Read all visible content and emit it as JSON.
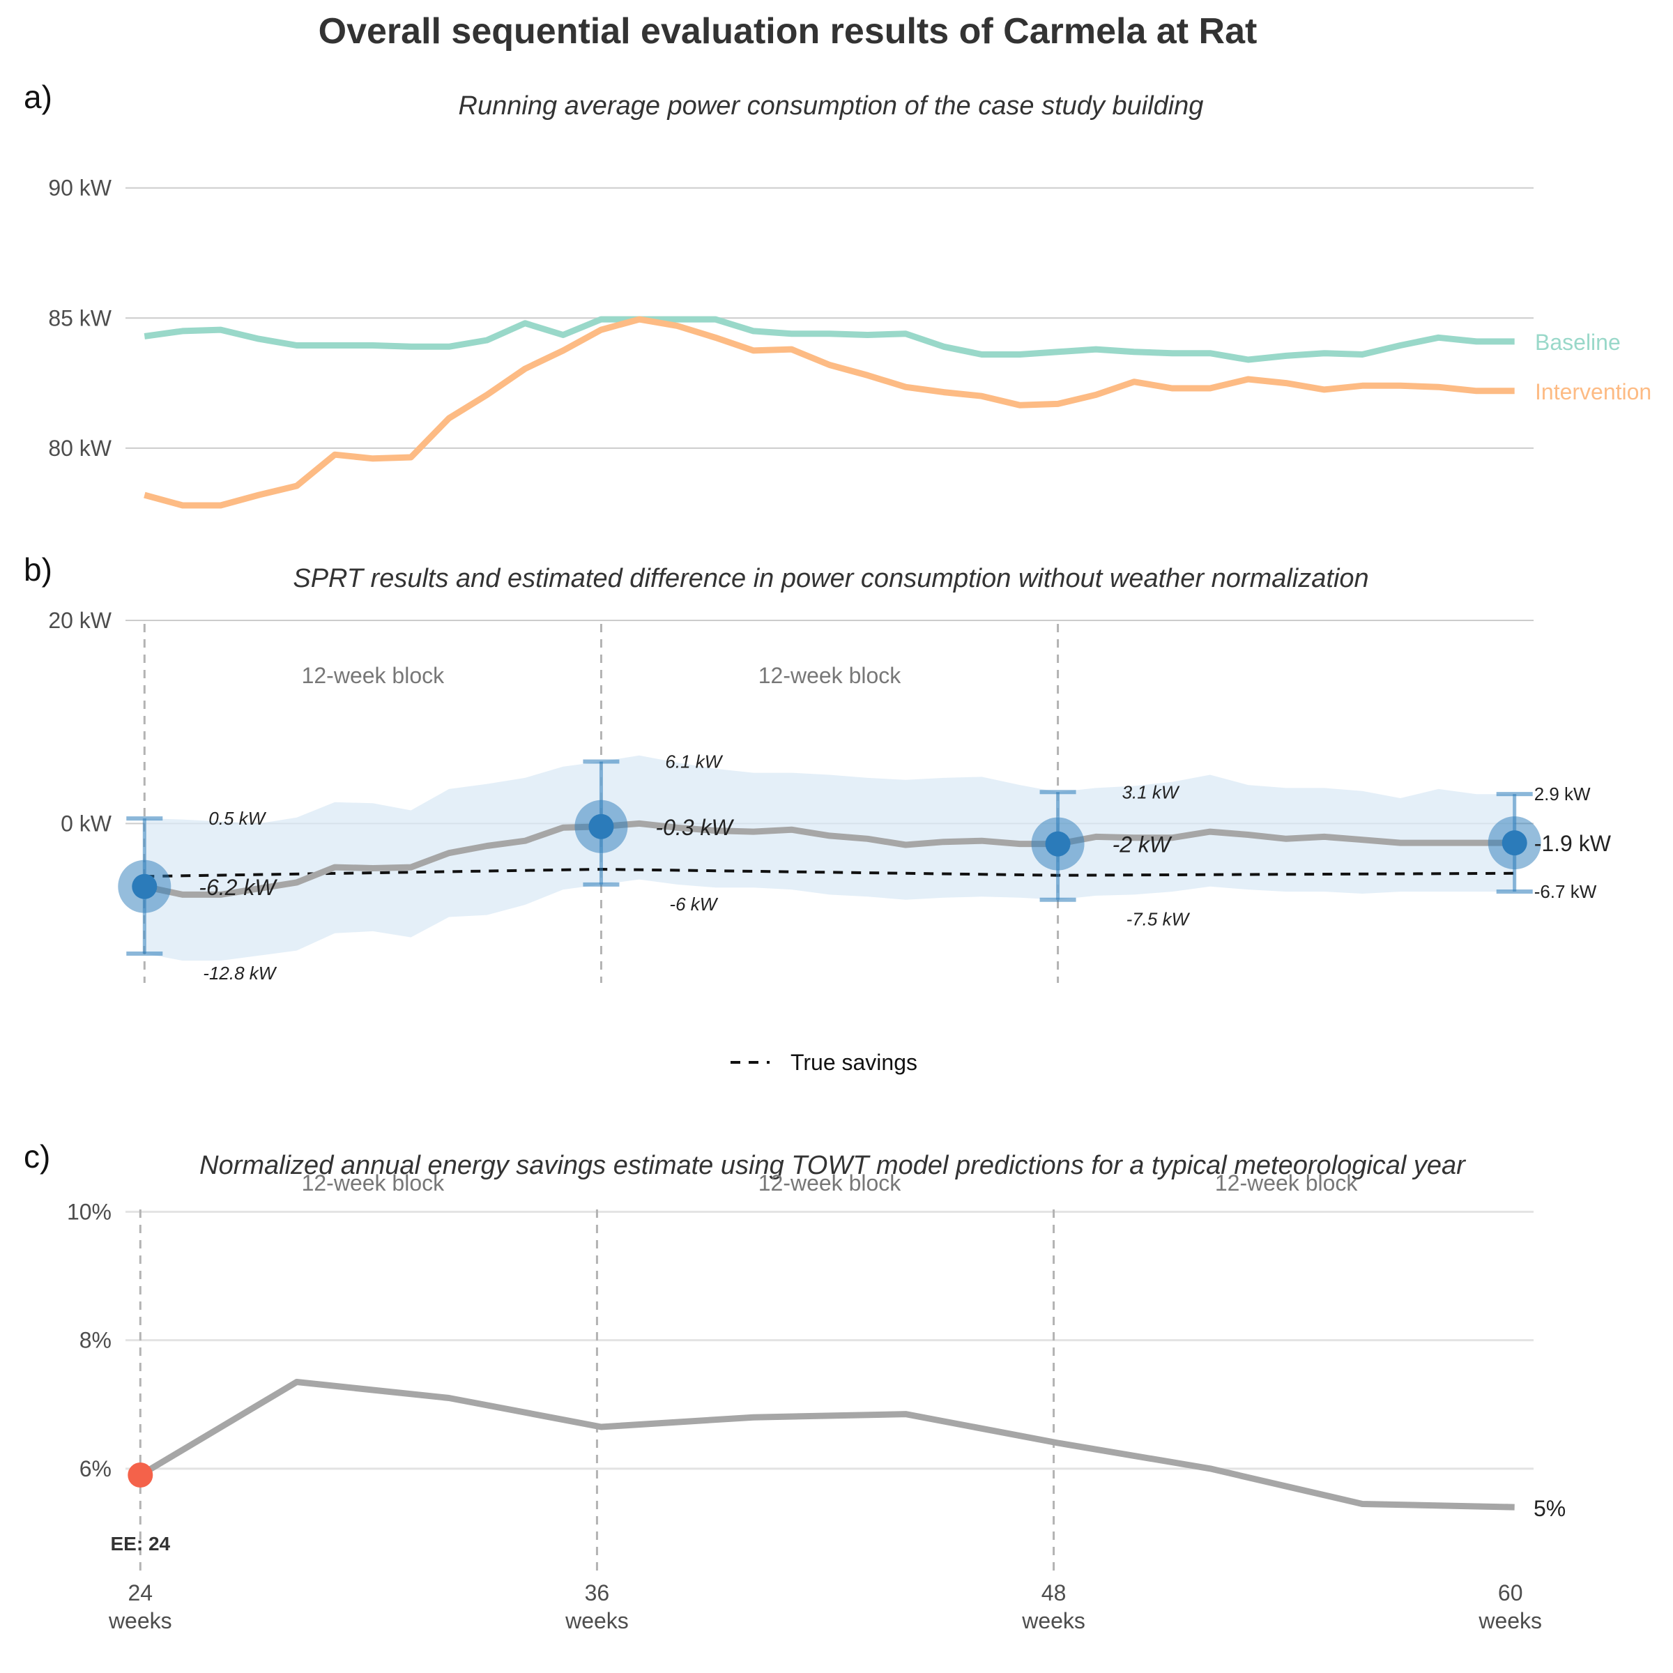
{
  "title": "Overall sequential evaluation results of Carmela at Rat",
  "colors": {
    "baseline": "#99d8c9",
    "intervention": "#fdbb84",
    "estimate_line": "#a6a6a6",
    "ci_band": "#dbe9f5",
    "point": "#2b7bba",
    "ee_point": "#f4624a",
    "true_savings": "#111111"
  },
  "chart_data": [
    {
      "id": "a",
      "panel_label": "a)",
      "type": "line",
      "subtitle": "Running average power consumption of the case study building",
      "ylim": [
        77.8,
        92
      ],
      "yticks": [
        80,
        85,
        90
      ],
      "ytick_labels": [
        "80 kW",
        "85 kW",
        "90 kW"
      ],
      "xlim": [
        23.5,
        60.5
      ],
      "grid": true,
      "series": [
        {
          "name": "Baseline",
          "x": [
            24,
            25,
            26,
            27,
            28,
            29,
            30,
            31,
            32,
            33,
            34,
            35,
            36,
            37,
            38,
            39,
            40,
            41,
            42,
            43,
            44,
            45,
            46,
            47,
            48,
            49,
            50,
            51,
            52,
            53,
            54,
            55,
            56,
            57,
            58,
            59,
            60
          ],
          "values": [
            84.3,
            84.5,
            84.55,
            84.2,
            83.95,
            83.95,
            83.95,
            83.9,
            83.9,
            84.15,
            84.8,
            84.35,
            84.95,
            84.95,
            84.95,
            84.95,
            84.5,
            84.4,
            84.4,
            84.35,
            84.4,
            83.9,
            83.6,
            83.6,
            83.7,
            83.8,
            83.7,
            83.65,
            83.65,
            83.4,
            83.55,
            83.65,
            83.6,
            83.95,
            84.25,
            84.1,
            84.1
          ]
        },
        {
          "name": "Intervention",
          "x": [
            24,
            25,
            26,
            27,
            28,
            29,
            30,
            31,
            32,
            33,
            34,
            35,
            36,
            37,
            38,
            39,
            40,
            41,
            42,
            43,
            44,
            45,
            46,
            47,
            48,
            49,
            50,
            51,
            52,
            53,
            54,
            55,
            56,
            57,
            58,
            59,
            60
          ],
          "values": [
            78.2,
            77.8,
            77.8,
            78.2,
            78.55,
            79.75,
            79.6,
            79.65,
            81.15,
            82.05,
            83.05,
            83.75,
            84.55,
            84.95,
            84.7,
            84.25,
            83.75,
            83.8,
            83.2,
            82.8,
            82.35,
            82.15,
            82.0,
            81.65,
            81.7,
            82.05,
            82.55,
            82.3,
            82.3,
            82.65,
            82.5,
            82.25,
            82.4,
            82.4,
            82.35,
            82.2,
            82.2
          ]
        }
      ]
    },
    {
      "id": "b",
      "panel_label": "b)",
      "type": "line",
      "subtitle": "SPRT results and estimated difference in power consumption without weather normalization",
      "ylim": [
        -15,
        20
      ],
      "yticks": [
        0,
        20
      ],
      "ytick_labels": [
        "0 kW",
        "20 kW"
      ],
      "xlim": [
        23.5,
        60.5
      ],
      "grid": true,
      "block_boundaries": [
        24,
        36,
        48
      ],
      "block_labels": [
        {
          "x": 30,
          "label": "12-week block"
        },
        {
          "x": 42,
          "label": "12-week block"
        }
      ],
      "estimate": {
        "x": [
          24,
          25,
          26,
          27,
          28,
          29,
          30,
          31,
          32,
          33,
          34,
          35,
          36,
          37,
          38,
          39,
          40,
          41,
          42,
          43,
          44,
          45,
          46,
          47,
          48,
          49,
          50,
          51,
          52,
          53,
          54,
          55,
          56,
          57,
          58,
          59,
          60
        ],
        "values": [
          -6.2,
          -7.0,
          -7.0,
          -6.4,
          -5.8,
          -4.3,
          -4.4,
          -4.3,
          -2.9,
          -2.2,
          -1.7,
          -0.4,
          -0.3,
          0.0,
          -0.4,
          -0.7,
          -0.8,
          -0.6,
          -1.2,
          -1.5,
          -2.1,
          -1.8,
          -1.7,
          -2.0,
          -2.0,
          -1.3,
          -1.4,
          -1.4,
          -0.8,
          -1.1,
          -1.5,
          -1.3,
          -1.6,
          -1.9,
          -1.9,
          -1.9,
          -1.9
        ]
      },
      "ci_band": {
        "lower": [
          -12.8,
          -13.5,
          -13.5,
          -13.0,
          -12.5,
          -10.8,
          -10.6,
          -11.2,
          -9.2,
          -9.0,
          -8.0,
          -6.5,
          -6.0,
          -5.5,
          -6.0,
          -6.3,
          -6.3,
          -6.5,
          -7.0,
          -7.2,
          -7.5,
          -7.3,
          -7.2,
          -7.3,
          -7.5,
          -7.1,
          -7.0,
          -6.7,
          -6.2,
          -6.5,
          -6.7,
          -6.7,
          -6.9,
          -6.7,
          -6.7,
          -6.7,
          -6.7
        ],
        "upper": [
          0.5,
          0.4,
          0.2,
          0.0,
          0.6,
          2.1,
          2.0,
          1.3,
          3.4,
          3.9,
          4.5,
          5.6,
          6.1,
          6.7,
          6.0,
          5.4,
          5.0,
          5.0,
          4.8,
          4.5,
          4.3,
          4.5,
          4.6,
          3.8,
          3.1,
          3.5,
          3.7,
          4.1,
          4.8,
          3.8,
          3.5,
          3.5,
          3.2,
          2.5,
          3.4,
          2.9,
          2.9
        ]
      },
      "evaluations": [
        {
          "x": 24,
          "estimate": -6.2,
          "lower": -12.8,
          "upper": 0.5,
          "estimate_label": "-6.2 kW",
          "lower_label": "-12.8 kW",
          "upper_label": "0.5 kW"
        },
        {
          "x": 36,
          "estimate": -0.3,
          "lower": -6.0,
          "upper": 6.1,
          "estimate_label": "-0.3 kW",
          "lower_label": "-6 kW",
          "upper_label": "6.1 kW"
        },
        {
          "x": 48,
          "estimate": -2.0,
          "lower": -7.5,
          "upper": 3.1,
          "estimate_label": "-2 kW",
          "lower_label": "-7.5 kW",
          "upper_label": "3.1 kW"
        },
        {
          "x": 60,
          "estimate": -1.9,
          "lower": -6.7,
          "upper": 2.9,
          "estimate_label": "-1.9 kW",
          "lower_label": "-6.7 kW",
          "upper_label": "2.9 kW"
        }
      ],
      "true_savings": {
        "name": "True savings",
        "x": [
          24,
          36,
          48,
          60
        ],
        "values": [
          -5.2,
          -4.5,
          -5.1,
          -4.9
        ]
      },
      "legend": {
        "label": "True savings",
        "placement": "bottom"
      }
    },
    {
      "id": "c",
      "panel_label": "c)",
      "type": "line",
      "subtitle": "Normalized annual energy savings estimate using TOWT model predictions for a typical meteorological year",
      "ylim": [
        4.5,
        10.2
      ],
      "yticks": [
        6,
        8,
        10
      ],
      "ytick_labels": [
        "6%",
        "8%",
        "10%"
      ],
      "xlim": [
        23.5,
        60.5
      ],
      "grid": true,
      "block_boundaries": [
        24,
        36,
        48
      ],
      "block_labels": [
        {
          "x": 30,
          "label": "12-week block"
        },
        {
          "x": 42,
          "label": "12-week block"
        },
        {
          "x": 54,
          "label": "12-week block"
        }
      ],
      "series": [
        {
          "x": [
            24,
            28,
            32,
            36,
            40,
            44,
            48,
            52,
            56,
            60
          ],
          "values": [
            5.9,
            7.35,
            7.1,
            6.65,
            6.8,
            6.85,
            6.4,
            6.0,
            5.45,
            5.4
          ]
        }
      ],
      "ee_point": {
        "x": 24,
        "value": 5.9,
        "label": "EE: 24"
      },
      "end_label": "5%",
      "xticks": [
        24,
        36,
        48,
        60
      ],
      "xtick_labels": [
        {
          "value": "24",
          "unit": "weeks"
        },
        {
          "value": "36",
          "unit": "weeks"
        },
        {
          "value": "48",
          "unit": "weeks"
        },
        {
          "value": "60",
          "unit": "weeks"
        }
      ]
    }
  ]
}
